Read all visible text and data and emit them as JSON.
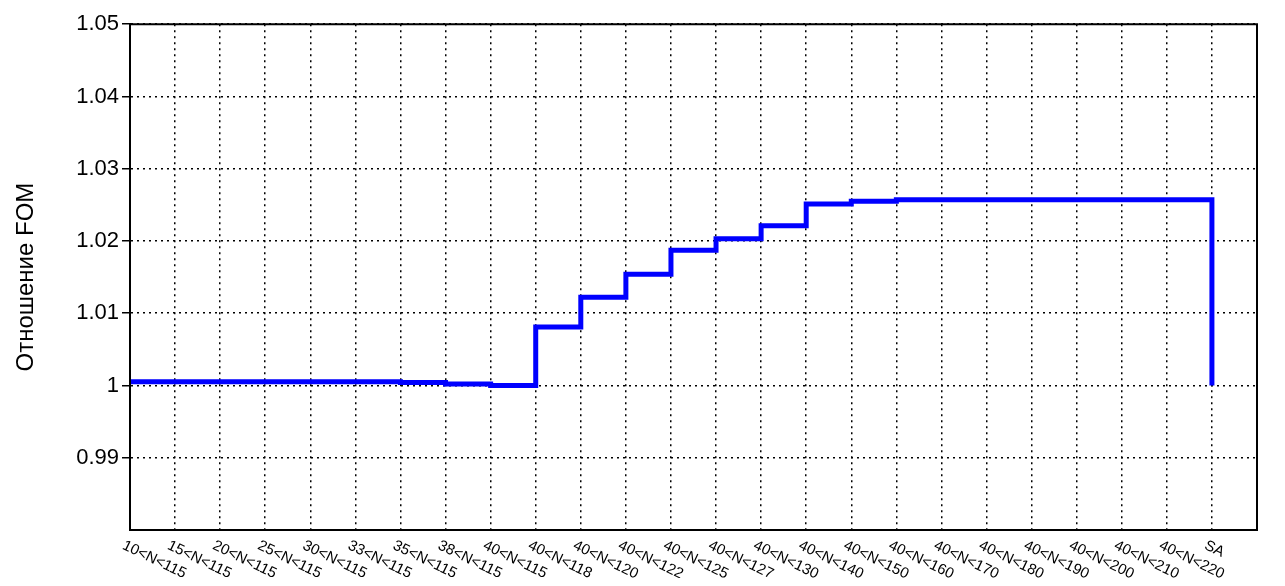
{
  "chart_data": {
    "type": "step",
    "ylabel": "Отношение FOM",
    "categories": [
      "10<N<115",
      "15<N<115",
      "20<N<115",
      "25<N<115",
      "30<N<115",
      "33<N<115",
      "35<N<115",
      "38<N<115",
      "40<N<115",
      "40<N<118",
      "40<N<120",
      "40<N<122",
      "40<N<125",
      "40<N<127",
      "40<N<130",
      "40<N<140",
      "40<N<150",
      "40<N<160",
      "40<N<170",
      "40<N<180",
      "40<N<190",
      "40<N<200",
      "40<N<210",
      "40<N<220",
      "SA"
    ],
    "series": [
      {
        "color": "#0000ff",
        "values": [
          1.0005,
          1.0005,
          1.0005,
          1.0005,
          1.0005,
          1.0005,
          1.0004,
          1.0002,
          1.0,
          1.0081,
          1.0122,
          1.0154,
          1.0187,
          1.0203,
          1.0221,
          1.0251,
          1.0255,
          1.0257,
          1.0257,
          1.0257,
          1.0257,
          1.0257,
          1.0257,
          1.0257,
          1.0
        ]
      }
    ],
    "ylim": [
      0.98,
      1.05
    ],
    "yticks": [
      0.99,
      1,
      1.01,
      1.02,
      1.03,
      1.04,
      1.05
    ],
    "grid": true,
    "legend": false
  }
}
